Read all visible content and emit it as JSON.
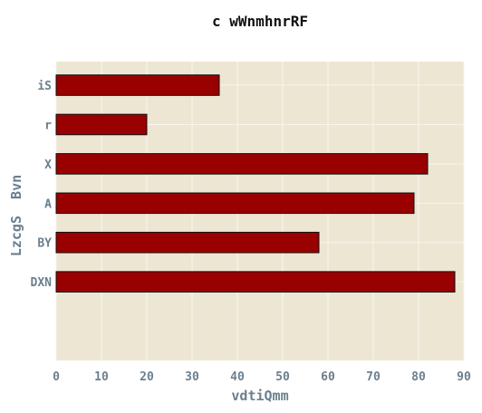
{
  "chart_data": {
    "type": "bar",
    "orientation": "horizontal",
    "title": "c wWnmhnrRF",
    "xlabel": "vdtiQmm",
    "ylabel": "LzcgS  Bvn",
    "categories": [
      "iS",
      "r",
      "X",
      "A",
      "BY",
      "DXN"
    ],
    "values": [
      36,
      20,
      82,
      79,
      58,
      88
    ],
    "xlim": [
      0,
      90
    ],
    "xticks": [
      0,
      10,
      20,
      30,
      40,
      50,
      60,
      70,
      80,
      90
    ],
    "grid": true,
    "legend": "none",
    "colors": {
      "bar": "#990000",
      "bar_edge": "#111111",
      "plot_bg": "#ede6d3",
      "grid": "#f8f5ec",
      "tick_text": "#6b7f8e"
    }
  }
}
